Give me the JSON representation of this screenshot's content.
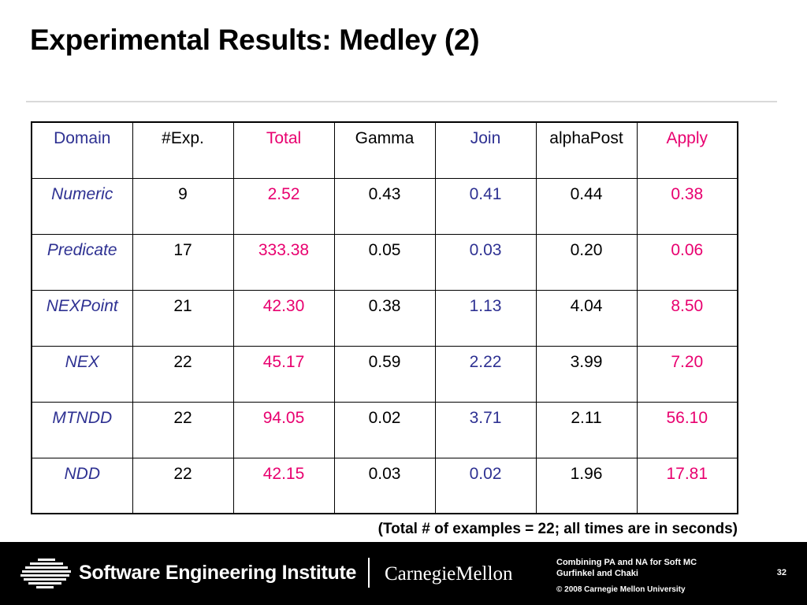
{
  "slide": {
    "title": "Experimental Results: Medley (2)",
    "note": "(Total # of examples = 22; all times are in seconds)"
  },
  "table": {
    "headers": [
      "Domain",
      "#Exp.",
      "Total",
      "Gamma",
      "Join",
      "alphaPost",
      "Apply"
    ],
    "rows": [
      [
        "Numeric",
        "9",
        "2.52",
        "0.43",
        "0.41",
        "0.44",
        "0.38"
      ],
      [
        "Predicate",
        "17",
        "333.38",
        "0.05",
        "0.03",
        "0.20",
        "0.06"
      ],
      [
        "NEXPoint",
        "21",
        "42.30",
        "0.38",
        "1.13",
        "4.04",
        "8.50"
      ],
      [
        "NEX",
        "22",
        "45.17",
        "0.59",
        "2.22",
        "3.99",
        "7.20"
      ],
      [
        "MTNDD",
        "22",
        "94.05",
        "0.02",
        "3.71",
        "2.11",
        "56.10"
      ],
      [
        "NDD",
        "22",
        "42.15",
        "0.03",
        "0.02",
        "1.96",
        "17.81"
      ]
    ]
  },
  "footer": {
    "org_name": "Software Engineering Institute",
    "university": "CarnegieMellon",
    "info_line1": "Combining PA and NA for Soft MC",
    "info_line2": "Gurfinkel and Chaki",
    "copyright": "© 2008 Carnegie Mellon University",
    "page_number": "32"
  },
  "colors": {
    "blue": "#2e3192",
    "magenta": "#e8006f"
  }
}
